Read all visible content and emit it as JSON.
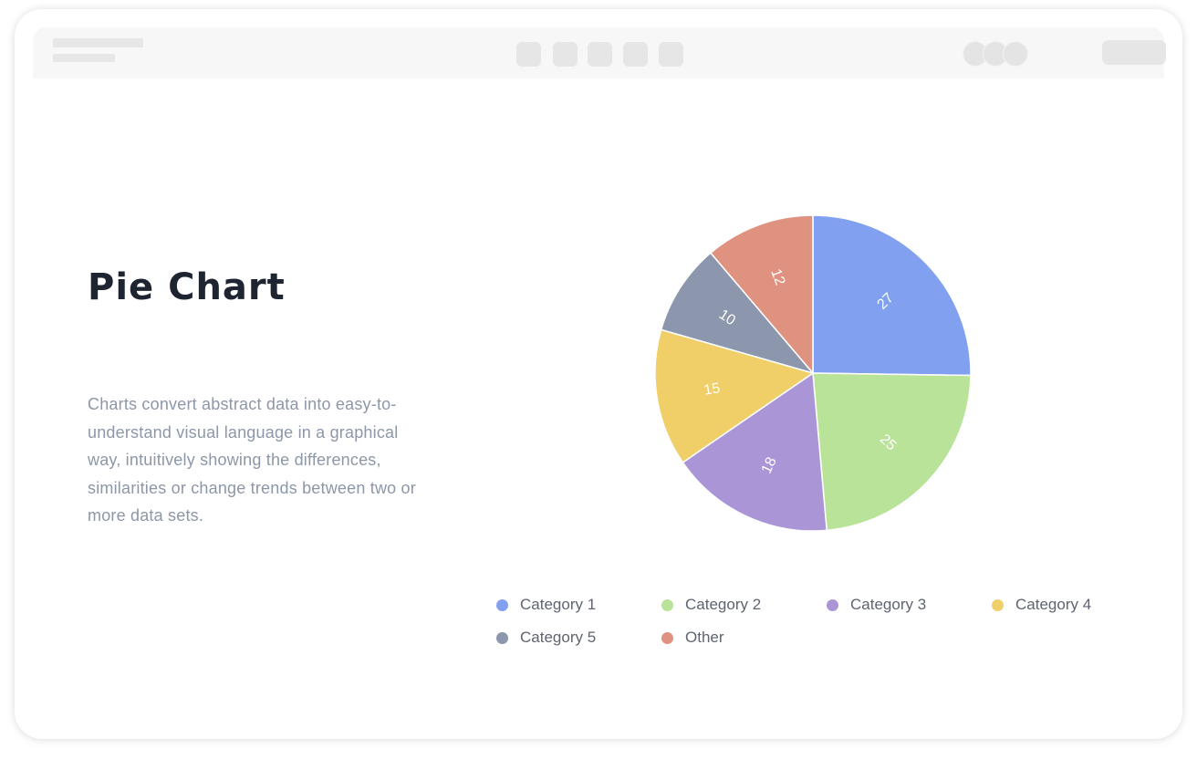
{
  "page": {
    "title": "Pie Chart",
    "description": "Charts convert abstract data into easy-to-understand visual language in a graphical way, intuitively showing the differences, similarities or change trends between two or more data sets."
  },
  "colors": {
    "title": "#1e2530",
    "description": "#8d97a8",
    "slice_border": "#ffffff",
    "slice_label": "#ffffff"
  },
  "chart_data": {
    "type": "pie",
    "categories": [
      "Category 1",
      "Category 2",
      "Category 3",
      "Category 4",
      "Category 5",
      "Other"
    ],
    "values": [
      27,
      25,
      18,
      15,
      10,
      12
    ],
    "colors": [
      "#81a0f0",
      "#b9e398",
      "#aa96d6",
      "#f0ce68",
      "#8c97ad",
      "#e09280"
    ],
    "start_angle_deg": 0,
    "direction": "clockwise",
    "data_labels": "inside, rotated radially",
    "legend": "bottom",
    "grid": false
  }
}
